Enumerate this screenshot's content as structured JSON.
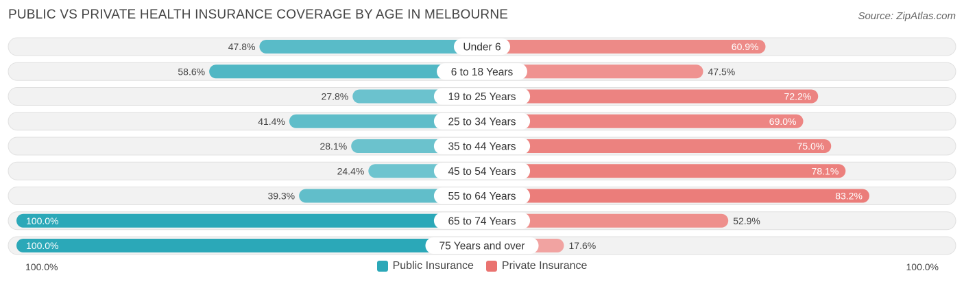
{
  "title": "PUBLIC VS PRIVATE HEALTH INSURANCE COVERAGE BY AGE IN MELBOURNE",
  "source": "Source: ZipAtlas.com",
  "axis": {
    "left_label": "100.0%",
    "right_label": "100.0%"
  },
  "legend": [
    {
      "name": "Public Insurance",
      "color": "#2ba8b8"
    },
    {
      "name": "Private Insurance",
      "color": "#ea7370"
    }
  ],
  "chart_data": {
    "type": "bar",
    "orientation": "diverging-horizontal",
    "categories": [
      "Under 6",
      "6 to 18 Years",
      "19 to 25 Years",
      "25 to 34 Years",
      "35 to 44 Years",
      "45 to 54 Years",
      "55 to 64 Years",
      "65 to 74 Years",
      "75 Years and over"
    ],
    "series": [
      {
        "name": "Public Insurance",
        "values": [
          47.8,
          58.6,
          27.8,
          41.4,
          28.1,
          24.4,
          39.3,
          100.0,
          100.0
        ],
        "labels": [
          "47.8%",
          "58.6%",
          "27.8%",
          "41.4%",
          "28.1%",
          "24.4%",
          "39.3%",
          "100.0%",
          "100.0%"
        ]
      },
      {
        "name": "Private Insurance",
        "values": [
          60.9,
          47.5,
          72.2,
          69.0,
          75.0,
          78.1,
          83.2,
          52.9,
          17.6
        ],
        "labels": [
          "60.9%",
          "47.5%",
          "72.2%",
          "69.0%",
          "75.0%",
          "78.1%",
          "83.2%",
          "52.9%",
          "17.6%"
        ]
      }
    ],
    "xlim": [
      -100,
      100
    ],
    "legend_position": "bottom-center"
  }
}
